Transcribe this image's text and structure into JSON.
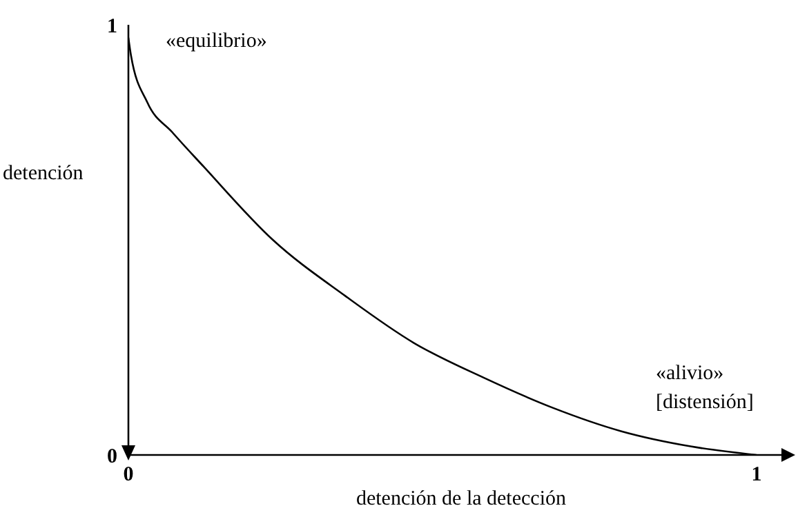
{
  "chart_data": {
    "type": "line",
    "xlabel": "detención de la detección",
    "ylabel": "detención",
    "x": [
      0,
      0.004,
      0.03,
      0.07,
      0.12,
      0.23,
      0.345,
      0.455,
      0.565,
      0.675,
      0.785,
      0.895,
      1
    ],
    "series": [
      {
        "color": "#000000",
        "values": [
          0.97,
          0.93,
          0.82,
          0.75,
          0.67,
          0.5,
          0.37,
          0.26,
          0.18,
          0.11,
          0.055,
          0.02,
          0
        ]
      }
    ],
    "xlim": [
      0,
      1
    ],
    "ylim": [
      0,
      1
    ],
    "xticks": [
      0,
      1
    ],
    "yticks": [
      0,
      1
    ],
    "grid": false,
    "marker": "none",
    "line_style": "solid",
    "annotations": [
      "«equilibrio»",
      {
        "text": "«alivio»\n[distensión]",
        "x": 1,
        "y": 0
      }
    ]
  }
}
